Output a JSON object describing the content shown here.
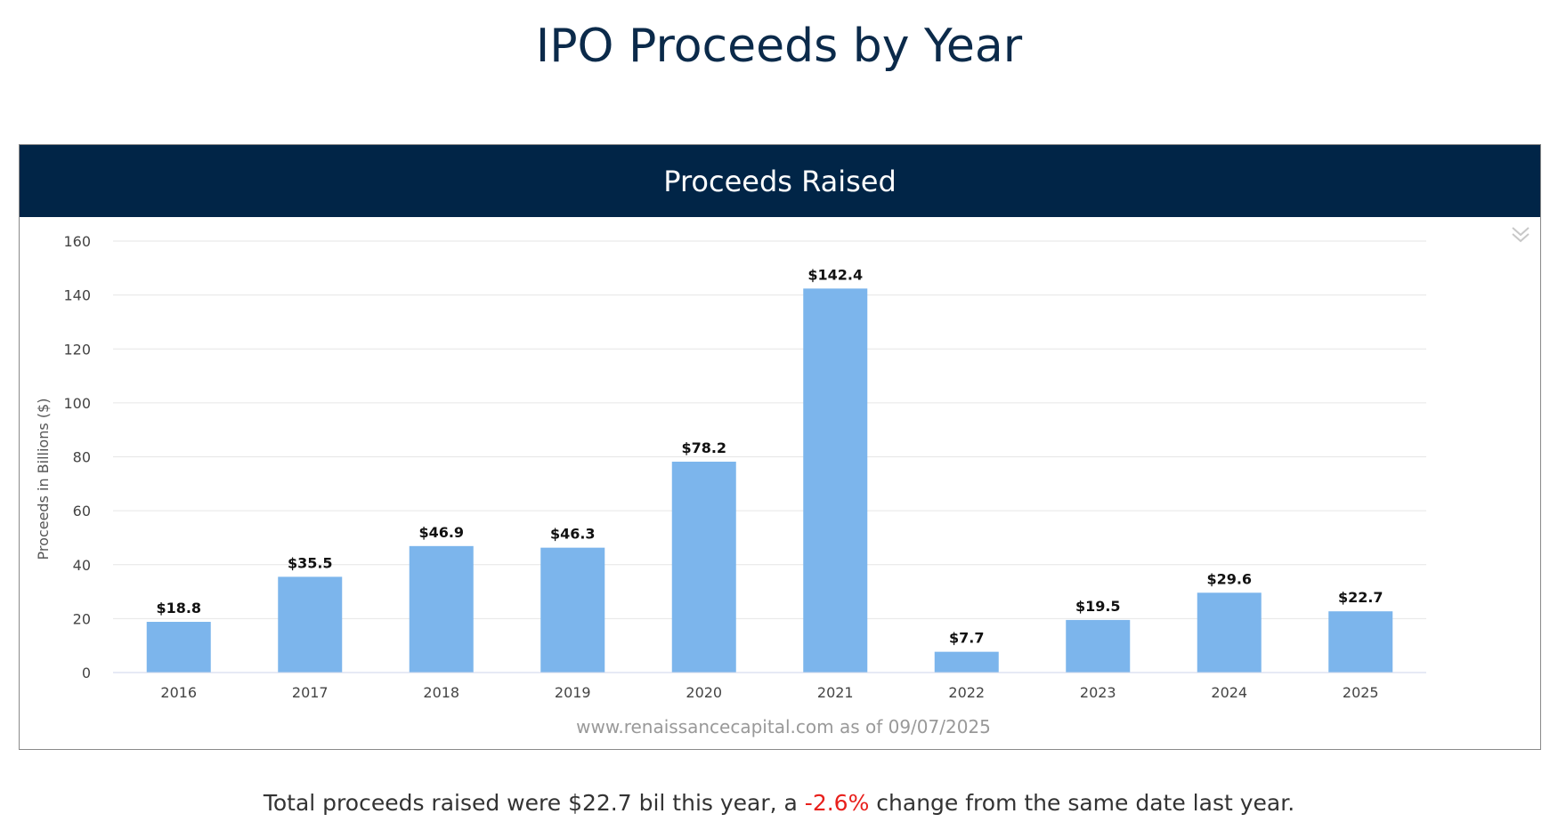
{
  "page": {
    "title": "IPO Proceeds by Year",
    "summary_prefix": "Total proceeds raised were $22.7 bil this year, a ",
    "summary_change": "-2.6%",
    "summary_suffix": " change from the same date last year.",
    "summary_change_color": "#e8201c"
  },
  "chart_data": {
    "type": "bar",
    "title": "Proceeds Raised",
    "header_bg": "#012547",
    "bar_color": "#7cb5ec",
    "categories": [
      "2016",
      "2017",
      "2018",
      "2019",
      "2020",
      "2021",
      "2022",
      "2023",
      "2024",
      "2025"
    ],
    "values": [
      18.8,
      35.5,
      46.9,
      46.3,
      78.2,
      142.4,
      7.7,
      19.5,
      29.6,
      22.7
    ],
    "data_labels": [
      "$18.8",
      "$35.5",
      "$46.9",
      "$46.3",
      "$78.2",
      "$142.4",
      "$7.7",
      "$19.5",
      "$29.6",
      "$22.7"
    ],
    "ylabel": "Proceeds in Billions ($)",
    "xlabel": "",
    "ylim": [
      0,
      160
    ],
    "yticks": [
      0,
      20,
      40,
      60,
      80,
      100,
      120,
      140,
      160
    ],
    "grid": true,
    "credit": "www.renaissancecapital.com as of 09/07/2025",
    "menu_icon": "double-chevron-down-icon"
  }
}
